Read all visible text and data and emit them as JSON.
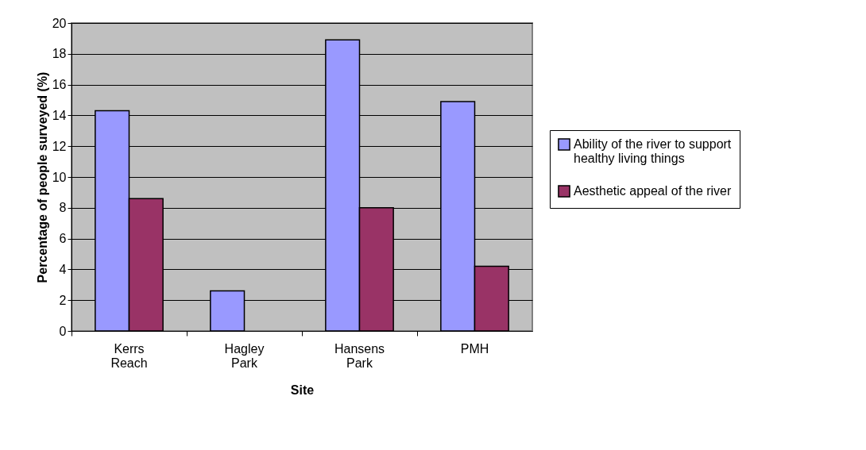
{
  "chart_data": {
    "type": "bar",
    "xlabel": "Site",
    "ylabel": "Percentage of people surveyed (%)",
    "categories": [
      "Kerrs Reach",
      "Hagley Park",
      "Hansens Park",
      "PMH"
    ],
    "series": [
      {
        "name": "Ability of the river to support healthy living things",
        "color": "#9999ff",
        "values": [
          14.3,
          2.6,
          18.9,
          14.9
        ]
      },
      {
        "name": "Aesthetic appeal of the river",
        "color": "#993366",
        "values": [
          8.6,
          null,
          8.0,
          4.2
        ]
      }
    ],
    "ylim": [
      0,
      20
    ],
    "yticks": [
      0,
      2,
      4,
      6,
      8,
      10,
      12,
      14,
      16,
      18,
      20
    ],
    "grid": "y",
    "legend": "right"
  }
}
